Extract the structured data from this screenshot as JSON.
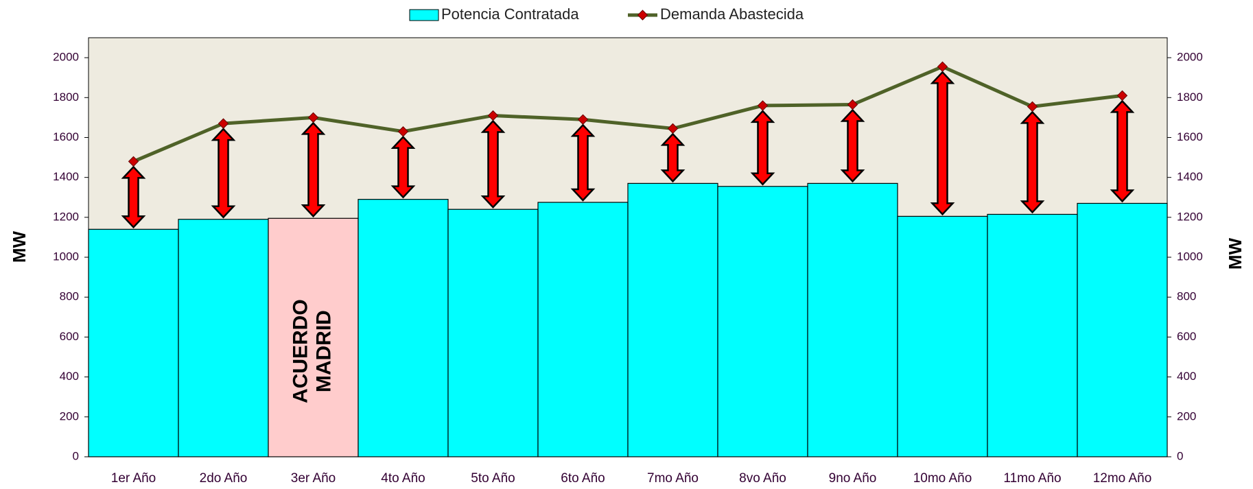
{
  "chart_data": {
    "type": "bar_line",
    "categories": [
      "1er Año",
      "2do Año",
      "3er Año",
      "4to Año",
      "5to Año",
      "6to Año",
      "7mo Año",
      "8vo Año",
      "9no Año",
      "10mo Año",
      "11mo Año",
      "12mo Año"
    ],
    "series": [
      {
        "name": "Potencia Contratada",
        "type": "bar",
        "color": "#00ffff",
        "colors": [
          "#00ffff",
          "#00ffff",
          "#ffcccc",
          "#00ffff",
          "#00ffff",
          "#00ffff",
          "#00ffff",
          "#00ffff",
          "#00ffff",
          "#00ffff",
          "#00ffff",
          "#00ffff"
        ],
        "values": [
          1140,
          1190,
          1195,
          1290,
          1240,
          1275,
          1370,
          1355,
          1370,
          1205,
          1215,
          1270
        ]
      },
      {
        "name": "Demanda Abastecida",
        "type": "line",
        "color": "#4f6228",
        "marker_color": "#cc0000",
        "values": [
          1480,
          1670,
          1700,
          1630,
          1710,
          1690,
          1645,
          1760,
          1765,
          1955,
          1755,
          1810
        ]
      }
    ],
    "annotations": [
      {
        "category": "3er Año",
        "lines": [
          "ACUERDO",
          "MADRID"
        ]
      }
    ],
    "gap_arrow_color": "#ff0000",
    "ylabel": "MW",
    "y2label": "MW",
    "ylim": [
      0,
      2100
    ],
    "yticks": [
      0,
      200,
      400,
      600,
      800,
      1000,
      1200,
      1400,
      1600,
      1800,
      2000
    ],
    "y2lim": [
      0,
      2100
    ],
    "y2ticks": [
      0,
      200,
      400,
      600,
      800,
      1000,
      1200,
      1400,
      1600,
      1800,
      2000
    ],
    "legend": "top",
    "plot_background": "#eeebe0"
  }
}
